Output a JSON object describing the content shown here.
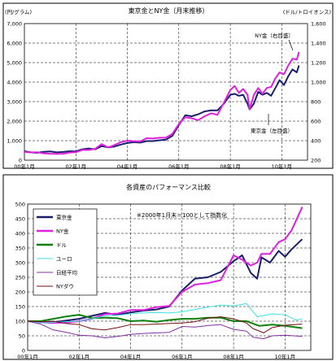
{
  "chart_data": [
    {
      "type": "line",
      "title": "東京金とNY金（月末推移）",
      "left_unit": "(円/グラム)",
      "right_unit": "(ドル/トロイオンス)",
      "x_ticks": [
        "00年1月",
        "02年1月",
        "04年1月",
        "06年1月",
        "08年1月",
        "10年1月"
      ],
      "left_ticks": [
        "0",
        "1,000",
        "2,000",
        "3,000",
        "4,000",
        "5,000",
        "6,000",
        "7,000"
      ],
      "right_ticks": [
        "200",
        "400",
        "600",
        "800",
        "1,000",
        "1,200",
        "1,400",
        "1,600"
      ],
      "ylim_left": [
        0,
        7000
      ],
      "ylim_right": [
        200,
        1600
      ],
      "grid": true,
      "series": [
        {
          "name": "東京金（左目盛）",
          "axis": "left",
          "color": "#1a1f6b",
          "x": [
            "2000-01",
            "2000-04",
            "2000-07",
            "2000-10",
            "2001-01",
            "2001-04",
            "2001-07",
            "2001-10",
            "2002-01",
            "2002-04",
            "2002-07",
            "2002-10",
            "2003-01",
            "2003-04",
            "2003-07",
            "2003-10",
            "2004-01",
            "2004-04",
            "2004-07",
            "2004-10",
            "2005-01",
            "2005-04",
            "2005-07",
            "2005-10",
            "2006-01",
            "2006-04",
            "2006-07",
            "2006-10",
            "2007-01",
            "2007-04",
            "2007-07",
            "2007-10",
            "2008-01",
            "2008-03",
            "2008-05",
            "2008-07",
            "2008-09",
            "2008-10",
            "2008-12",
            "2009-02",
            "2009-04",
            "2009-06",
            "2009-08",
            "2009-10",
            "2009-12",
            "2010-02",
            "2010-04",
            "2010-06",
            "2010-08",
            "2010-09"
          ],
          "values": [
            460,
            400,
            380,
            430,
            450,
            400,
            420,
            460,
            450,
            560,
            600,
            560,
            720,
            660,
            700,
            800,
            880,
            920,
            900,
            980,
            980,
            1020,
            1050,
            1250,
            1800,
            2300,
            2250,
            2350,
            2500,
            2550,
            2550,
            2900,
            3350,
            3400,
            3300,
            3350,
            2900,
            2600,
            2900,
            3500,
            3350,
            3450,
            3300,
            3700,
            4100,
            3850,
            4300,
            4650,
            4500,
            4850
          ]
        },
        {
          "name": "NY金（右目盛）",
          "axis": "right",
          "color": "#e020e0",
          "x": [
            "2000-01",
            "2000-04",
            "2000-07",
            "2000-10",
            "2001-01",
            "2001-04",
            "2001-07",
            "2001-10",
            "2002-01",
            "2002-04",
            "2002-07",
            "2002-10",
            "2003-01",
            "2003-04",
            "2003-07",
            "2003-10",
            "2004-01",
            "2004-04",
            "2004-07",
            "2004-10",
            "2005-01",
            "2005-04",
            "2005-07",
            "2005-10",
            "2006-01",
            "2006-04",
            "2006-07",
            "2006-10",
            "2007-01",
            "2007-04",
            "2007-07",
            "2007-10",
            "2008-01",
            "2008-03",
            "2008-05",
            "2008-07",
            "2008-09",
            "2008-10",
            "2008-12",
            "2009-02",
            "2009-04",
            "2009-06",
            "2009-08",
            "2009-10",
            "2009-12",
            "2010-02",
            "2010-04",
            "2010-06",
            "2010-08",
            "2010-09"
          ],
          "values": [
            283,
            280,
            282,
            270,
            266,
            264,
            266,
            278,
            282,
            305,
            305,
            317,
            365,
            330,
            355,
            385,
            400,
            395,
            392,
            425,
            422,
            430,
            430,
            470,
            570,
            640,
            630,
            610,
            650,
            680,
            665,
            790,
            920,
            960,
            890,
            930,
            870,
            720,
            870,
            940,
            880,
            940,
            950,
            1040,
            1100,
            1080,
            1170,
            1240,
            1230,
            1310
          ]
        }
      ]
    },
    {
      "type": "line",
      "title": "各資産のパフォーマンス比較",
      "annotation": "※2000年1月末＝100として指数化",
      "x_ticks": [
        "00年1月",
        "02年1月",
        "04年1月",
        "06年1月",
        "08年1月",
        "10年1月"
      ],
      "y_ticks": [
        "0",
        "50",
        "100",
        "150",
        "200",
        "250",
        "300",
        "350",
        "400",
        "450",
        "500"
      ],
      "ylim": [
        0,
        500
      ],
      "grid": true,
      "legend_position": "top-left",
      "series": [
        {
          "name": "東京金",
          "color": "#1a1f6b",
          "x": [
            "2000-01",
            "2000-07",
            "2001-01",
            "2001-07",
            "2002-01",
            "2002-07",
            "2003-01",
            "2003-07",
            "2004-01",
            "2004-07",
            "2005-01",
            "2005-07",
            "2006-01",
            "2006-07",
            "2007-01",
            "2007-07",
            "2008-01",
            "2008-05",
            "2008-09",
            "2008-12",
            "2009-02",
            "2009-06",
            "2009-10",
            "2010-01",
            "2010-04",
            "2010-09"
          ],
          "values": [
            100,
            98,
            96,
            102,
            108,
            118,
            128,
            122,
            130,
            136,
            140,
            150,
            205,
            245,
            250,
            268,
            305,
            325,
            265,
            245,
            318,
            300,
            340,
            320,
            345,
            380
          ]
        },
        {
          "name": "NY金",
          "color": "#e020e0",
          "x": [
            "2000-01",
            "2000-07",
            "2001-01",
            "2001-07",
            "2002-01",
            "2002-07",
            "2003-01",
            "2003-07",
            "2004-01",
            "2004-07",
            "2005-01",
            "2005-07",
            "2006-01",
            "2006-07",
            "2007-01",
            "2007-07",
            "2008-01",
            "2008-05",
            "2008-09",
            "2008-12",
            "2009-02",
            "2009-06",
            "2009-10",
            "2010-01",
            "2010-04",
            "2010-09"
          ],
          "values": [
            100,
            96,
            94,
            95,
            100,
            108,
            124,
            126,
            138,
            138,
            148,
            152,
            200,
            225,
            230,
            240,
            325,
            310,
            290,
            300,
            330,
            330,
            370,
            380,
            410,
            490
          ]
        },
        {
          "name": "ドル",
          "color": "#108010",
          "x": [
            "2000-01",
            "2000-07",
            "2001-01",
            "2001-07",
            "2002-01",
            "2002-07",
            "2003-01",
            "2003-07",
            "2004-01",
            "2004-07",
            "2005-01",
            "2005-07",
            "2006-01",
            "2006-07",
            "2007-01",
            "2007-07",
            "2008-01",
            "2008-07",
            "2009-01",
            "2009-07",
            "2010-01",
            "2010-09"
          ],
          "values": [
            100,
            100,
            108,
            116,
            122,
            110,
            112,
            110,
            100,
            102,
            98,
            104,
            108,
            108,
            112,
            112,
            100,
            100,
            84,
            88,
            84,
            76
          ]
        },
        {
          "name": "ユーロ",
          "color": "#40e0e0",
          "x": [
            "2000-01",
            "2000-07",
            "2001-01",
            "2001-07",
            "2002-01",
            "2002-07",
            "2003-01",
            "2003-07",
            "2004-01",
            "2004-07",
            "2005-01",
            "2005-07",
            "2006-01",
            "2006-07",
            "2007-01",
            "2007-07",
            "2008-01",
            "2008-07",
            "2008-12",
            "2009-07",
            "2010-01",
            "2010-06",
            "2010-09"
          ],
          "values": [
            100,
            94,
            96,
            98,
            100,
            108,
            118,
            120,
            125,
            128,
            130,
            128,
            132,
            140,
            148,
            155,
            152,
            160,
            115,
            125,
            122,
            104,
            108
          ]
        },
        {
          "name": "日経平均",
          "color": "#8030a0",
          "x": [
            "2000-01",
            "2000-07",
            "2001-01",
            "2001-07",
            "2002-01",
            "2002-07",
            "2003-01",
            "2003-07",
            "2004-01",
            "2004-07",
            "2005-01",
            "2005-07",
            "2006-01",
            "2006-07",
            "2007-01",
            "2007-07",
            "2008-01",
            "2008-07",
            "2008-10",
            "2009-03",
            "2009-07",
            "2010-01",
            "2010-09"
          ],
          "values": [
            100,
            90,
            70,
            62,
            52,
            50,
            43,
            48,
            55,
            58,
            60,
            62,
            82,
            80,
            85,
            88,
            72,
            66,
            45,
            40,
            50,
            52,
            48
          ]
        },
        {
          "name": "NYダウ",
          "color": "#701010",
          "x": [
            "2000-01",
            "2000-07",
            "2001-01",
            "2001-07",
            "2002-01",
            "2002-07",
            "2003-01",
            "2003-07",
            "2004-01",
            "2004-07",
            "2005-01",
            "2005-07",
            "2006-01",
            "2006-07",
            "2007-01",
            "2007-07",
            "2008-01",
            "2008-07",
            "2008-10",
            "2009-03",
            "2009-07",
            "2010-01",
            "2010-09"
          ],
          "values": [
            100,
            98,
            100,
            92,
            88,
            74,
            70,
            78,
            88,
            88,
            90,
            92,
            94,
            98,
            110,
            115,
            108,
            94,
            75,
            60,
            78,
            86,
            90
          ]
        }
      ]
    }
  ],
  "annotations": {
    "ny_gold_label": "NY金（右目盛）",
    "tokyo_gold_label": "東京金（左目盛）"
  }
}
